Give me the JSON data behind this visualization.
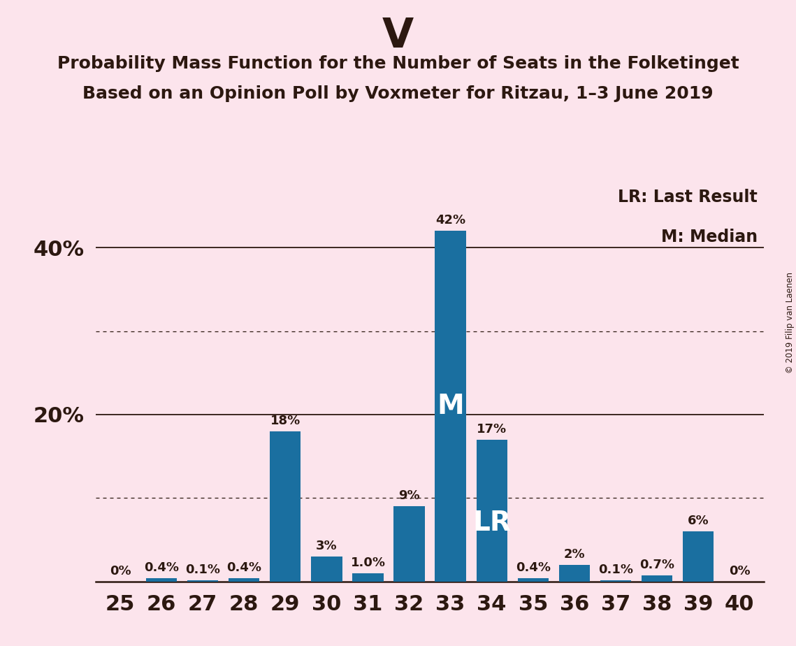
{
  "title_main": "V",
  "title_line1": "Probability Mass Function for the Number of Seats in the Folketinget",
  "title_line2": "Based on an Opinion Poll by Voxmeter for Ritzau, 1–3 June 2019",
  "copyright_text": "© 2019 Filip van Laenen",
  "categories": [
    25,
    26,
    27,
    28,
    29,
    30,
    31,
    32,
    33,
    34,
    35,
    36,
    37,
    38,
    39,
    40
  ],
  "values": [
    0.0,
    0.4,
    0.1,
    0.4,
    18.0,
    3.0,
    1.0,
    9.0,
    42.0,
    17.0,
    0.4,
    2.0,
    0.1,
    0.7,
    6.0,
    0.0
  ],
  "labels": [
    "0%",
    "0.4%",
    "0.1%",
    "0.4%",
    "18%",
    "3%",
    "1.0%",
    "9%",
    "42%",
    "17%",
    "0.4%",
    "2%",
    "0.1%",
    "0.7%",
    "6%",
    "0%"
  ],
  "bar_color": "#1a6fa0",
  "background_color": "#fce4ec",
  "axis_color": "#2c1810",
  "text_color": "#2c1810",
  "median_seat": 33,
  "last_result_seat": 34,
  "ylim": [
    0,
    48
  ],
  "legend_lr": "LR: Last Result",
  "legend_m": "M: Median"
}
